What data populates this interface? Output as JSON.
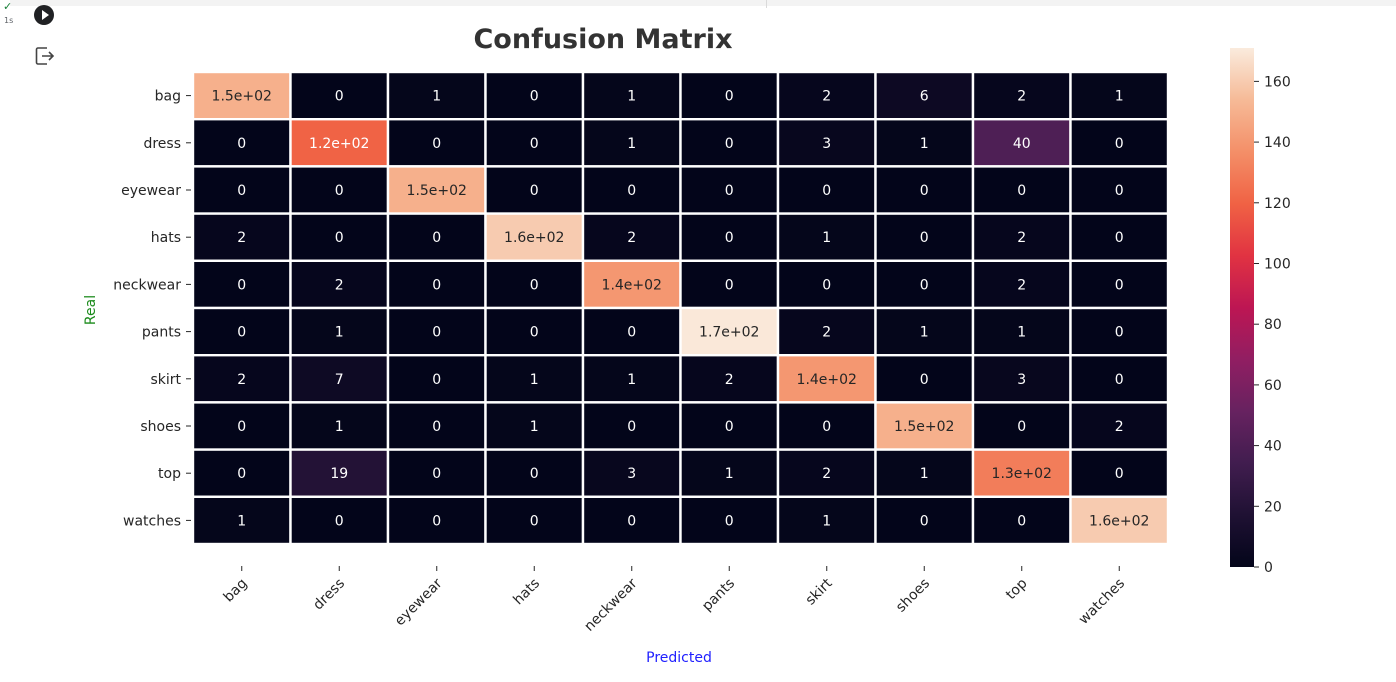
{
  "cell": {
    "status_icon": "check-icon",
    "exec_time": "1s",
    "run_icon": "play-circle-icon",
    "output_icon": "output-redirect-icon"
  },
  "chart_data": {
    "type": "heatmap",
    "title": "Confusion Matrix",
    "xlabel": "Predicted",
    "ylabel": "Real",
    "x_categories": [
      "bag",
      "dress",
      "eyewear",
      "hats",
      "neckwear",
      "pants",
      "skirt",
      "shoes",
      "top",
      "watches"
    ],
    "y_categories": [
      "bag",
      "dress",
      "eyewear",
      "hats",
      "neckwear",
      "pants",
      "skirt",
      "shoes",
      "top",
      "watches"
    ],
    "values": [
      [
        150,
        0,
        1,
        0,
        1,
        0,
        2,
        6,
        2,
        1
      ],
      [
        0,
        120,
        0,
        0,
        1,
        0,
        3,
        1,
        40,
        0
      ],
      [
        0,
        0,
        150,
        0,
        0,
        0,
        0,
        0,
        0,
        0
      ],
      [
        2,
        0,
        0,
        160,
        2,
        0,
        1,
        0,
        2,
        0
      ],
      [
        0,
        2,
        0,
        0,
        140,
        0,
        0,
        0,
        2,
        0
      ],
      [
        0,
        1,
        0,
        0,
        0,
        170,
        2,
        1,
        1,
        0
      ],
      [
        2,
        7,
        0,
        1,
        1,
        2,
        140,
        0,
        3,
        0
      ],
      [
        0,
        1,
        0,
        1,
        0,
        0,
        0,
        150,
        0,
        2
      ],
      [
        0,
        19,
        0,
        0,
        3,
        1,
        2,
        1,
        130,
        0
      ],
      [
        1,
        0,
        0,
        0,
        0,
        0,
        1,
        0,
        0,
        160
      ]
    ],
    "annotations": [
      [
        "1.5e+02",
        "0",
        "1",
        "0",
        "1",
        "0",
        "2",
        "6",
        "2",
        "1"
      ],
      [
        "0",
        "1.2e+02",
        "0",
        "0",
        "1",
        "0",
        "3",
        "1",
        "40",
        "0"
      ],
      [
        "0",
        "0",
        "1.5e+02",
        "0",
        "0",
        "0",
        "0",
        "0",
        "0",
        "0"
      ],
      [
        "2",
        "0",
        "0",
        "1.6e+02",
        "2",
        "0",
        "1",
        "0",
        "2",
        "0"
      ],
      [
        "0",
        "2",
        "0",
        "0",
        "1.4e+02",
        "0",
        "0",
        "0",
        "2",
        "0"
      ],
      [
        "0",
        "1",
        "0",
        "0",
        "0",
        "1.7e+02",
        "2",
        "1",
        "1",
        "0"
      ],
      [
        "2",
        "7",
        "0",
        "1",
        "1",
        "2",
        "1.4e+02",
        "0",
        "3",
        "0"
      ],
      [
        "0",
        "1",
        "0",
        "1",
        "0",
        "0",
        "0",
        "1.5e+02",
        "0",
        "2"
      ],
      [
        "0",
        "19",
        "0",
        "0",
        "3",
        "1",
        "2",
        "1",
        "1.3e+02",
        "0"
      ],
      [
        "1",
        "0",
        "0",
        "0",
        "0",
        "0",
        "1",
        "0",
        "0",
        "1.6e+02"
      ]
    ],
    "colorbar": {
      "min": 0,
      "max": 171,
      "ticks": [
        0,
        20,
        40,
        60,
        80,
        100,
        120,
        140,
        160
      ],
      "colormap": "rocket"
    },
    "colors": {
      "title": "#333333",
      "xlabel": "#2020ff",
      "ylabel": "#1a8a1a",
      "grid_line": "#ffffff",
      "text_dark_bg": "#ffffff",
      "text_light_bg": "#262626"
    }
  }
}
